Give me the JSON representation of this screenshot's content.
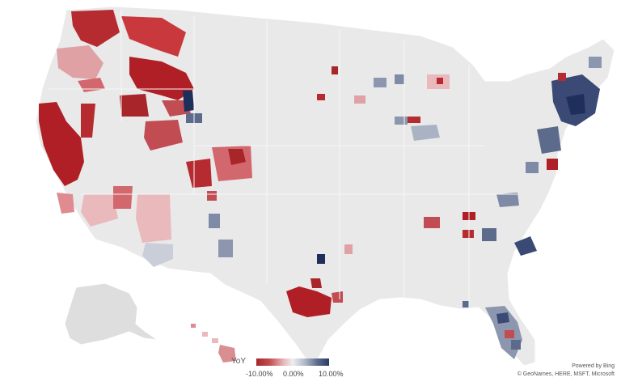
{
  "legend": {
    "title": "YoY",
    "ticks": [
      "-10.00%",
      "0.00%",
      "10.00%"
    ],
    "colors": {
      "negative": "#a8262a",
      "neutral": "#eeeeee",
      "positive": "#2a3a64"
    }
  },
  "attribution": {
    "line1": "Powered by Bing",
    "line2": "© GeoNames, HERE, MSFT, Microsoft"
  }
}
